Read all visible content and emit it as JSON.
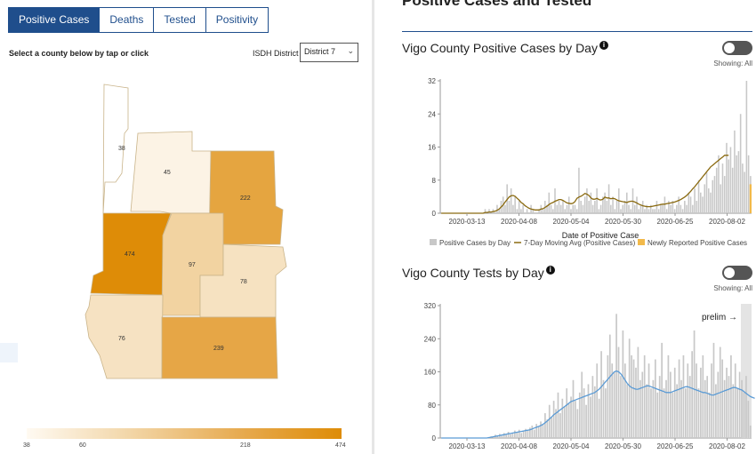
{
  "tabs": [
    {
      "label": "Positive Cases",
      "active": true
    },
    {
      "label": "Deaths",
      "active": false
    },
    {
      "label": "Tested",
      "active": false
    },
    {
      "label": "Positivity",
      "active": false
    }
  ],
  "instruction": "Select a county below by tap or click",
  "district": {
    "label": "ISDH District",
    "selected": "District 7"
  },
  "counties": [
    {
      "id": "north",
      "value": "38",
      "color": "#ffffff"
    },
    {
      "id": "north-central",
      "value": "45",
      "color": "#fcf3e5"
    },
    {
      "id": "northeast",
      "value": "222",
      "color": "#e5a540"
    },
    {
      "id": "vigo",
      "value": "474",
      "color": "#de8c07"
    },
    {
      "id": "central",
      "value": "97",
      "color": "#f2d3a1"
    },
    {
      "id": "east",
      "value": "78",
      "color": "#f6e2c1"
    },
    {
      "id": "southwest",
      "value": "76",
      "color": "#f6e2c2"
    },
    {
      "id": "south",
      "value": "239",
      "color": "#e6a646"
    }
  ],
  "legend": {
    "ticks": [
      "38",
      "60",
      "218",
      "474"
    ]
  },
  "right_header": "Positive Cases and Tested",
  "chart_data": [
    {
      "type": "bar",
      "title": "Vigo County Positive Cases by Day",
      "xlabel": "Date of Positive Case",
      "ylabel": "",
      "ylim": [
        0,
        32
      ],
      "yticks": [
        "0",
        "8",
        "16",
        "24",
        "32"
      ],
      "xticks": [
        "2020-03-13",
        "2020-04-08",
        "2020-05-04",
        "2020-05-30",
        "2020-06-25",
        "2020-08-02"
      ],
      "showing": "Showing: All",
      "colors": {
        "bars": "#c8c8c8",
        "line": "#8a6a10",
        "new": "#f2b94a"
      },
      "series": [
        {
          "name": "Positive Cases by Day",
          "kind": "bar",
          "values": [
            0,
            0,
            0,
            0,
            0,
            0,
            0,
            0,
            0,
            0,
            0,
            0,
            0,
            0,
            0,
            0,
            0,
            0,
            0,
            0,
            0,
            0,
            1,
            0,
            1,
            0,
            1,
            0,
            2,
            1,
            3,
            4,
            2,
            7,
            3,
            6,
            2,
            4,
            1,
            3,
            1,
            2,
            0,
            1,
            0,
            2,
            1,
            0,
            0,
            1,
            2,
            1,
            3,
            2,
            5,
            2,
            1,
            6,
            2,
            3,
            2,
            3,
            1,
            2,
            4,
            1,
            2,
            2,
            1,
            11,
            3,
            2,
            4,
            6,
            3,
            5,
            2,
            3,
            6,
            1,
            2,
            4,
            5,
            3,
            7,
            2,
            4,
            1,
            3,
            6,
            1,
            2,
            3,
            5,
            2,
            1,
            6,
            2,
            4,
            1,
            2,
            3,
            1,
            2,
            1,
            2,
            1,
            1,
            3,
            1,
            2,
            2,
            4,
            1,
            3,
            2,
            3,
            1,
            2,
            4,
            2,
            1,
            3,
            2,
            5,
            4,
            2,
            6,
            3,
            8,
            5,
            4,
            7,
            10,
            6,
            5,
            8,
            9,
            11,
            14,
            7,
            12,
            9,
            17,
            13,
            16,
            11,
            20,
            14,
            15,
            24,
            12,
            10,
            32,
            14,
            9
          ]
        },
        {
          "name": "7-Day Moving Avg (Positive Cases)",
          "kind": "line",
          "values": [
            0,
            0,
            0,
            0,
            0,
            0,
            0,
            0,
            0,
            0,
            0,
            0,
            0,
            0,
            0,
            0,
            0,
            0,
            0,
            0,
            0,
            0,
            0.2,
            0.2,
            0.3,
            0.3,
            0.4,
            0.5,
            0.7,
            1,
            1.5,
            2,
            2.7,
            3.3,
            3.9,
            4.2,
            4.3,
            4.1,
            3.6,
            3.2,
            2.6,
            2.3,
            1.8,
            1.5,
            1.2,
            1,
            0.9,
            0.8,
            0.8,
            0.8,
            1,
            1.1,
            1.4,
            1.7,
            2.1,
            2.4,
            2.6,
            2.9,
            3.1,
            3.3,
            3.3,
            3.1,
            2.8,
            2.5,
            2.4,
            2.3,
            2.4,
            2.8,
            3.6,
            3.9,
            4.1,
            4.4,
            4.8,
            4.6,
            4.3,
            3.7,
            3.4,
            3.4,
            3.6,
            3.3,
            3.2,
            3.4,
            3.9,
            3.7,
            3.7,
            3.5,
            3.6,
            3.5,
            3.2,
            3,
            2.9,
            2.8,
            2.7,
            2.6,
            2.8,
            2.9,
            2.9,
            2.7,
            2.5,
            2.2,
            2,
            1.8,
            1.7,
            1.6,
            1.6,
            1.6,
            1.7,
            1.8,
            1.9,
            2,
            2.1,
            2.2,
            2.2,
            2.3,
            2.4,
            2.5,
            2.6,
            2.7,
            2.9,
            3.1,
            3.3,
            3.6,
            3.9,
            4.3,
            4.8,
            5.3,
            5.9,
            6.4,
            7,
            7.6,
            8.2,
            8.8,
            9.4,
            10,
            10.6,
            11.2,
            11.6,
            12,
            12.4,
            12.8,
            13.2,
            13.6,
            14,
            14,
            14
          ]
        },
        {
          "name": "Newly Reported Positive Cases",
          "kind": "bar",
          "values": [
            0,
            0,
            7
          ]
        }
      ]
    },
    {
      "type": "bar",
      "title": "Vigo County Tests by Day",
      "xlabel": "",
      "ylabel": "",
      "ylim": [
        0,
        320
      ],
      "yticks": [
        "0",
        "80",
        "160",
        "240",
        "320"
      ],
      "xticks": [
        "2020-03-13",
        "2020-04-08",
        "2020-05-04",
        "2020-05-30",
        "2020-06-25",
        "2020-08-02"
      ],
      "showing": "Showing: All",
      "prelim_label": "prelim →",
      "colors": {
        "bars": "#c8c8c8",
        "line": "#5b9bd5",
        "prelim": "#e4e4e4"
      },
      "series": [
        {
          "name": "Tests by Day",
          "kind": "bar",
          "values": [
            0,
            0,
            0,
            0,
            0,
            0,
            0,
            0,
            0,
            0,
            0,
            0,
            0,
            0,
            0,
            0,
            0,
            0,
            0,
            0,
            0,
            0,
            2,
            4,
            3,
            8,
            6,
            10,
            5,
            12,
            8,
            15,
            9,
            11,
            18,
            14,
            20,
            12,
            16,
            22,
            18,
            25,
            30,
            20,
            34,
            28,
            40,
            32,
            60,
            45,
            80,
            50,
            90,
            70,
            110,
            60,
            95,
            75,
            120,
            85,
            100,
            140,
            90,
            70,
            110,
            160,
            120,
            80,
            130,
            100,
            150,
            125,
            180,
            95,
            210,
            140,
            120,
            200,
            250,
            180,
            160,
            300,
            220,
            150,
            260,
            180,
            130,
            240,
            200,
            190,
            170,
            220,
            140,
            160,
            200,
            130,
            180,
            120,
            140,
            190,
            110,
            150,
            230,
            120,
            140,
            200,
            160,
            110,
            170,
            130,
            190,
            140,
            200,
            120,
            180,
            150,
            210,
            260,
            180,
            120,
            170,
            200,
            140,
            150,
            110,
            180,
            230,
            130,
            160,
            220,
            190,
            140,
            170,
            150,
            200,
            130,
            180,
            120,
            160,
            140,
            110,
            150,
            90,
            30
          ]
        },
        {
          "name": "7-Day Moving Avg (Tests)",
          "kind": "line",
          "values": [
            0,
            0,
            0,
            0,
            0,
            0,
            0,
            0,
            0,
            0,
            0,
            0,
            0,
            0,
            0,
            0,
            0,
            0,
            0,
            0,
            0,
            0,
            1,
            2,
            3,
            4,
            5,
            6,
            7,
            8,
            9,
            10,
            11,
            12,
            13,
            14,
            15,
            16,
            17,
            18,
            19,
            20,
            22,
            24,
            26,
            28,
            30,
            33,
            37,
            41,
            46,
            51,
            56,
            60,
            64,
            68,
            72,
            76,
            80,
            84,
            88,
            90,
            92,
            94,
            96,
            98,
            100,
            102,
            104,
            106,
            108,
            110,
            114,
            118,
            124,
            130,
            136,
            142,
            148,
            154,
            160,
            162,
            160,
            155,
            148,
            140,
            132,
            126,
            122,
            120,
            118,
            118,
            120,
            122,
            124,
            126,
            126,
            124,
            122,
            120,
            118,
            116,
            114,
            112,
            110,
            110,
            110,
            112,
            114,
            116,
            118,
            120,
            122,
            124,
            124,
            122,
            120,
            118,
            116,
            114,
            112,
            110,
            110,
            108,
            106,
            104,
            104,
            106,
            108,
            110,
            112,
            114,
            116,
            118,
            120,
            122,
            122,
            120,
            118,
            116,
            112,
            108,
            104,
            100,
            98,
            96
          ]
        }
      ]
    }
  ]
}
